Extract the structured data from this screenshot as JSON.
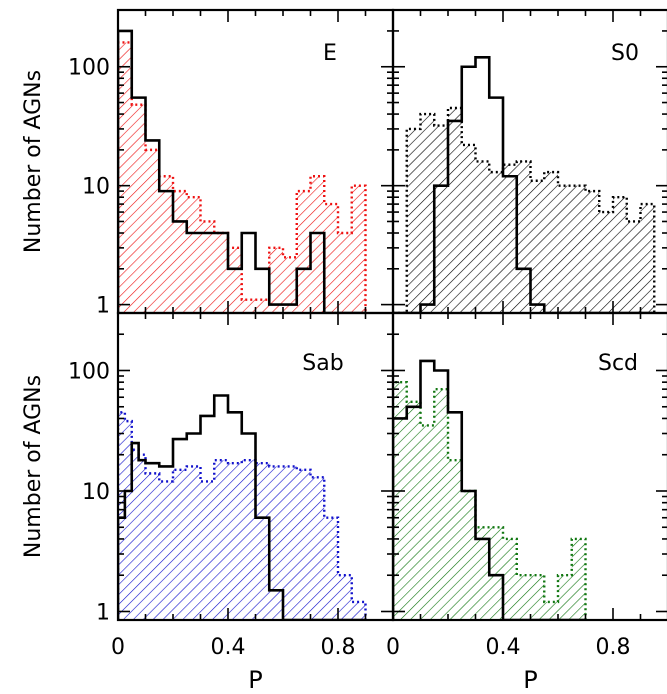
{
  "chart_data": [
    {
      "type": "histogram-step",
      "panel_label": "E",
      "xlabel": "",
      "ylabel": "Number of AGNs",
      "x_ticks": [
        "0",
        "0.4",
        "0.8"
      ],
      "x_tick_values": [
        0,
        0.4,
        0.8
      ],
      "y_ticks": [
        "1",
        "10",
        "100"
      ],
      "y_tick_values": [
        1,
        10,
        100
      ],
      "xlim": [
        0,
        1.0
      ],
      "ylim": [
        0.85,
        300
      ],
      "yscale": "log",
      "bin_edges": [
        0,
        0.05,
        0.1,
        0.15,
        0.2,
        0.25,
        0.3,
        0.35,
        0.4,
        0.45,
        0.5,
        0.55,
        0.6,
        0.65,
        0.7,
        0.75,
        0.8,
        0.85,
        0.9
      ],
      "series": [
        {
          "style": "solid",
          "color": "#000000",
          "fill": false,
          "values": [
            200,
            55,
            24,
            9,
            5,
            4,
            4,
            4,
            2,
            4,
            2,
            1,
            1,
            2,
            4,
            0,
            0,
            0
          ]
        },
        {
          "style": "dotted",
          "color": "#ee1111",
          "fill": "hatched",
          "values": [
            160,
            48,
            20,
            12,
            9,
            8,
            5,
            4,
            3,
            1.1,
            1.1,
            3,
            2.5,
            9,
            12,
            7,
            4,
            10
          ]
        }
      ]
    },
    {
      "type": "histogram-step",
      "panel_label": "S0",
      "xlabel": "",
      "ylabel": "",
      "x_ticks": [
        "0",
        "0.4",
        "0.8"
      ],
      "x_tick_values": [
        0,
        0.4,
        0.8
      ],
      "y_ticks": [],
      "xlim": [
        0,
        1.0
      ],
      "ylim": [
        0.85,
        300
      ],
      "yscale": "log",
      "bin_edges": [
        0,
        0.05,
        0.1,
        0.15,
        0.2,
        0.25,
        0.3,
        0.35,
        0.4,
        0.45,
        0.5,
        0.55,
        0.6,
        0.65,
        0.7,
        0.75,
        0.8,
        0.85,
        0.9,
        0.95
      ],
      "series": [
        {
          "style": "solid",
          "color": "#000000",
          "fill": false,
          "values": [
            0,
            0,
            1,
            10,
            35,
            100,
            120,
            55,
            12,
            2,
            1,
            0,
            0,
            0,
            0,
            0,
            0,
            0,
            0
          ]
        },
        {
          "style": "dotted",
          "color": "#000000",
          "fill": "hatched",
          "values": [
            0,
            30,
            40,
            32,
            45,
            22,
            16,
            13,
            15,
            16,
            11,
            13,
            10,
            10,
            9,
            6,
            8,
            5,
            7
          ]
        }
      ]
    },
    {
      "type": "histogram-step",
      "panel_label": "Sab",
      "xlabel": "P",
      "ylabel": "Number of AGNs",
      "x_ticks": [
        "0",
        "0.4",
        "0.8"
      ],
      "x_tick_values": [
        0,
        0.4,
        0.8
      ],
      "y_ticks": [
        "1",
        "10",
        "100"
      ],
      "y_tick_values": [
        1,
        10,
        100
      ],
      "xlim": [
        0,
        1.0
      ],
      "ylim": [
        0.85,
        300
      ],
      "yscale": "log",
      "bin_edges": [
        0,
        0.025,
        0.05,
        0.075,
        0.1,
        0.15,
        0.2,
        0.25,
        0.3,
        0.35,
        0.4,
        0.45,
        0.5,
        0.55,
        0.6,
        0.65,
        0.7,
        0.75,
        0.8,
        0.85,
        0.9
      ],
      "series": [
        {
          "style": "solid",
          "color": "#000000",
          "fill": false,
          "values": [
            6,
            10,
            25,
            18,
            17,
            16,
            27,
            30,
            42,
            62,
            45,
            30,
            6,
            1.5,
            0,
            0,
            0,
            0,
            0,
            0
          ]
        },
        {
          "style": "dotted",
          "color": "#1111cc",
          "fill": "hatched",
          "values": [
            45,
            38,
            22,
            20,
            14,
            12,
            15,
            16,
            12,
            18,
            17,
            18,
            17,
            16,
            16,
            15,
            13,
            6,
            2,
            1.2
          ]
        }
      ]
    },
    {
      "type": "histogram-step",
      "panel_label": "Scd",
      "xlabel": "P",
      "ylabel": "",
      "x_ticks": [
        "0",
        "0.4",
        "0.8"
      ],
      "x_tick_values": [
        0,
        0.4,
        0.8
      ],
      "y_ticks": [],
      "xlim": [
        0,
        1.0
      ],
      "ylim": [
        0.85,
        300
      ],
      "yscale": "log",
      "bin_edges": [
        0,
        0.05,
        0.1,
        0.15,
        0.2,
        0.25,
        0.3,
        0.35,
        0.4,
        0.45,
        0.5,
        0.55,
        0.6,
        0.65,
        0.7
      ],
      "series": [
        {
          "style": "solid",
          "color": "#000000",
          "fill": false,
          "values": [
            40,
            50,
            120,
            100,
            45,
            10,
            4,
            2,
            0,
            0,
            0,
            0,
            0,
            0
          ]
        },
        {
          "style": "dotted",
          "color": "#117711",
          "fill": "hatched",
          "values": [
            80,
            55,
            35,
            70,
            18,
            10,
            5,
            5,
            4,
            2,
            2,
            1.2,
            2,
            4
          ]
        }
      ]
    }
  ]
}
